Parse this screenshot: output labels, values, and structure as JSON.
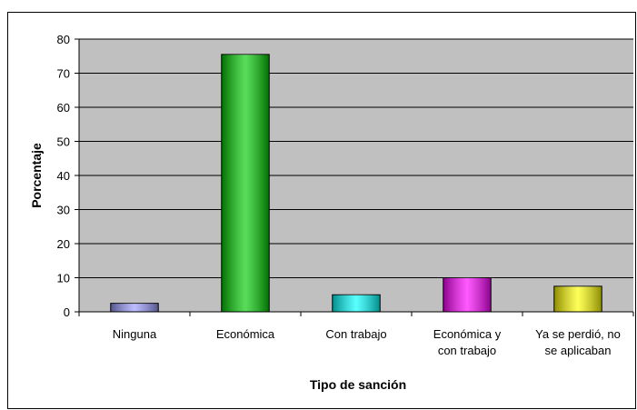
{
  "chart_data": {
    "type": "bar",
    "x_label": "Tipo de sanción",
    "y_label": "Porcentaje",
    "categories": [
      "Ninguna",
      "Económica",
      "Con trabajo",
      "Económica y\ncon trabajo",
      "Ya se perdió, no\nse aplicaban"
    ],
    "values": [
      2.5,
      75.5,
      5,
      10,
      7.5
    ],
    "colors": [
      "#9999ff",
      "#00cc00",
      "#00ffff",
      "#ff00ff",
      "#ffff00"
    ],
    "ylim": [
      0,
      80
    ],
    "yticks": [
      0,
      10,
      20,
      30,
      40,
      50,
      60,
      70,
      80
    ],
    "grid": true
  }
}
